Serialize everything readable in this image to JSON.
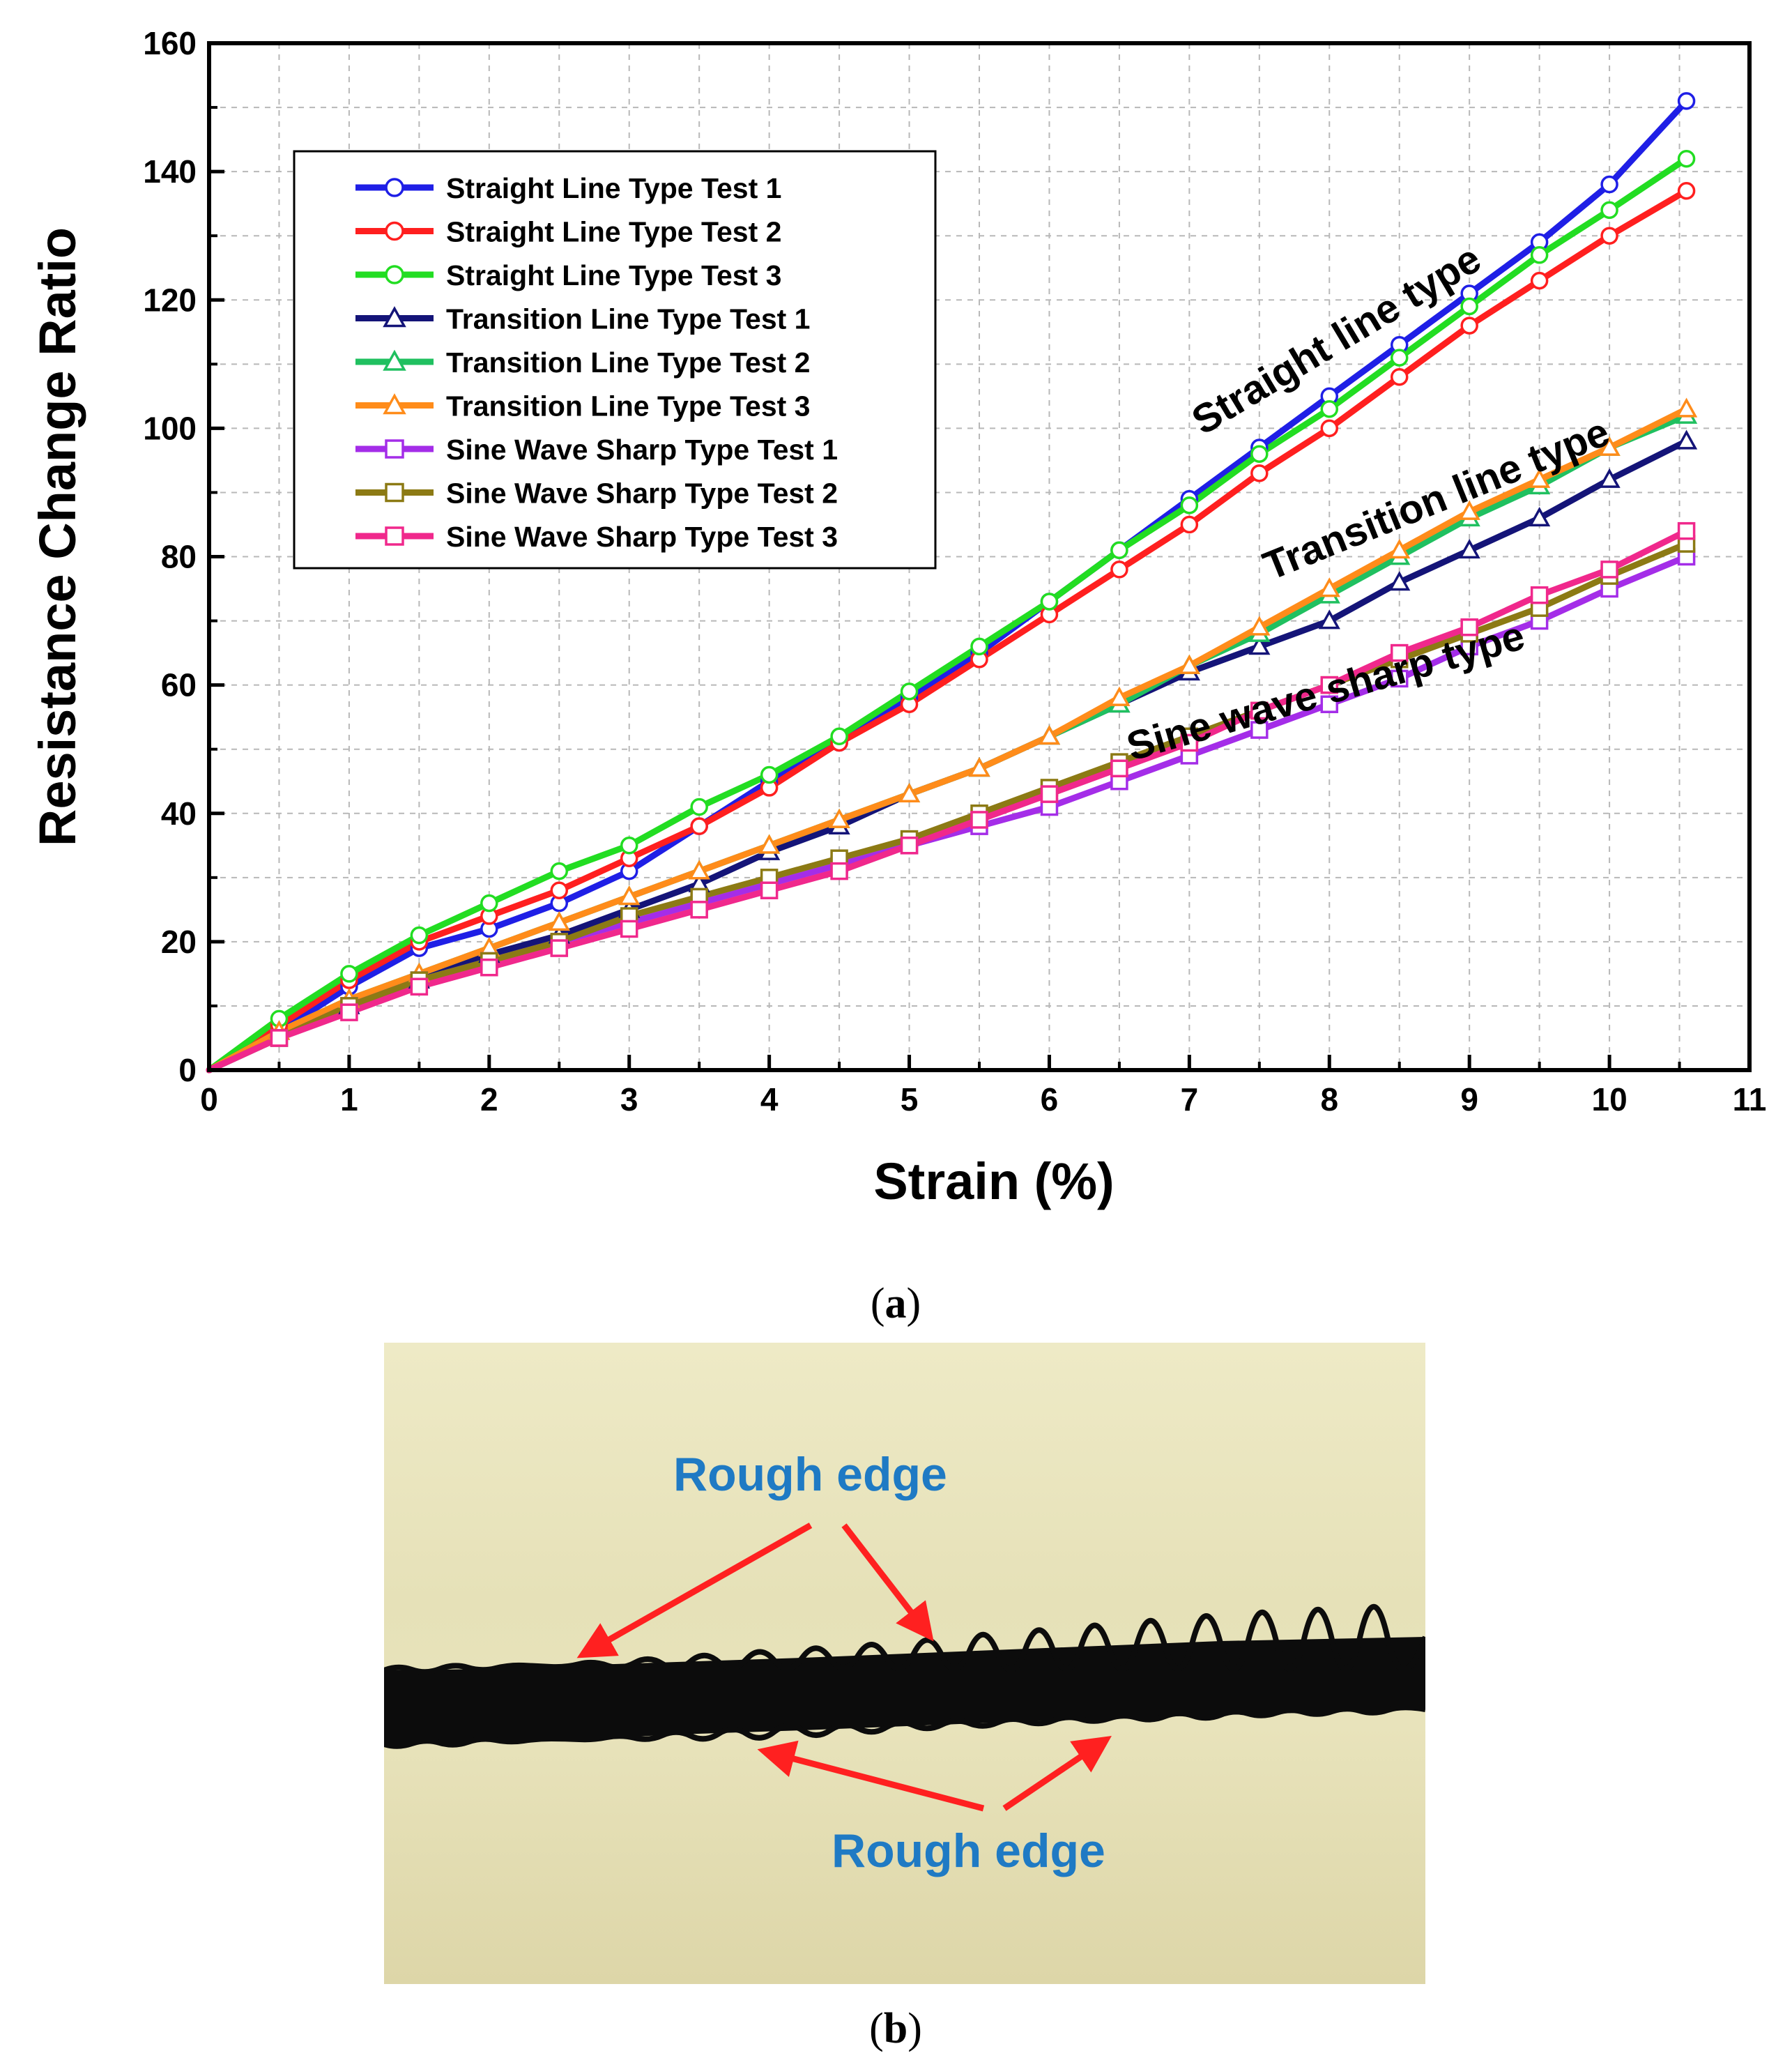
{
  "chart_data": {
    "type": "line",
    "xlabel": "Strain (%)",
    "ylabel": "Resistance Change Ratio",
    "xlim": [
      0,
      11
    ],
    "ylim": [
      0,
      160
    ],
    "xticks": [
      0,
      1,
      2,
      3,
      4,
      5,
      6,
      7,
      8,
      9,
      10,
      11
    ],
    "yticks": [
      0,
      20,
      40,
      60,
      80,
      100,
      120,
      140,
      160
    ],
    "grid": true,
    "legend_position": "top-left",
    "series": [
      {
        "name": "Straight Line Type Test 1",
        "color": "#1f1fe6",
        "marker": "circle",
        "x": [
          0,
          0.5,
          1,
          1.5,
          2,
          2.5,
          3,
          3.5,
          4,
          4.5,
          5,
          5.5,
          6,
          6.5,
          7,
          7.5,
          8,
          8.5,
          9,
          9.5,
          10,
          10.55
        ],
        "y": [
          0,
          6,
          13,
          19,
          22,
          26,
          31,
          38,
          45,
          51,
          58,
          65,
          73,
          81,
          89,
          97,
          105,
          113,
          121,
          129,
          138,
          151
        ]
      },
      {
        "name": "Straight Line Type Test 2",
        "color": "#ff1f1f",
        "marker": "circle",
        "x": [
          0,
          0.5,
          1,
          1.5,
          2,
          2.5,
          3,
          3.5,
          4,
          4.5,
          5,
          5.5,
          6,
          6.5,
          7,
          7.5,
          8,
          8.5,
          9,
          9.5,
          10,
          10.55
        ],
        "y": [
          0,
          7,
          14,
          20,
          24,
          28,
          33,
          38,
          44,
          51,
          57,
          64,
          71,
          78,
          85,
          93,
          100,
          108,
          116,
          123,
          130,
          137
        ]
      },
      {
        "name": "Straight Line Type Test 3",
        "color": "#22dd22",
        "marker": "circle",
        "x": [
          0,
          0.5,
          1,
          1.5,
          2,
          2.5,
          3,
          3.5,
          4,
          4.5,
          5,
          5.5,
          6,
          6.5,
          7,
          7.5,
          8,
          8.5,
          9,
          9.5,
          10,
          10.55
        ],
        "y": [
          0,
          8,
          15,
          21,
          26,
          31,
          35,
          41,
          46,
          52,
          59,
          66,
          73,
          81,
          88,
          96,
          103,
          111,
          119,
          127,
          134,
          142
        ]
      },
      {
        "name": "Transition Line Type Test 1",
        "color": "#141478",
        "marker": "triangle",
        "x": [
          0,
          0.5,
          1,
          1.5,
          2,
          2.5,
          3,
          3.5,
          4,
          4.5,
          5,
          5.5,
          6,
          6.5,
          7,
          7.5,
          8,
          8.5,
          9,
          9.5,
          10,
          10.55
        ],
        "y": [
          0,
          6,
          10,
          14,
          18,
          21,
          25,
          29,
          34,
          38,
          43,
          47,
          52,
          57,
          62,
          66,
          70,
          76,
          81,
          86,
          92,
          98
        ]
      },
      {
        "name": "Transition Line Type  Test 2",
        "color": "#20c060",
        "marker": "triangle",
        "x": [
          0,
          0.5,
          1,
          1.5,
          2,
          2.5,
          3,
          3.5,
          4,
          4.5,
          5,
          5.5,
          6,
          6.5,
          7,
          7.5,
          8,
          8.5,
          9,
          9.5,
          10,
          10.55
        ],
        "y": [
          0,
          6,
          11,
          15,
          19,
          23,
          27,
          31,
          35,
          39,
          43,
          47,
          52,
          57,
          63,
          68,
          74,
          80,
          86,
          91,
          97,
          102
        ]
      },
      {
        "name": "Transition Line Type  Test 3",
        "color": "#ff8c1a",
        "marker": "triangle",
        "x": [
          0,
          0.5,
          1,
          1.5,
          2,
          2.5,
          3,
          3.5,
          4,
          4.5,
          5,
          5.5,
          6,
          6.5,
          7,
          7.5,
          8,
          8.5,
          9,
          9.5,
          10,
          10.55
        ],
        "y": [
          0,
          6,
          11,
          15,
          19,
          23,
          27,
          31,
          35,
          39,
          43,
          47,
          52,
          58,
          63,
          69,
          75,
          81,
          87,
          92,
          97,
          103
        ]
      },
      {
        "name": "Sine Wave Sharp Type Test 1",
        "color": "#a42de8",
        "marker": "square",
        "x": [
          0,
          0.5,
          1,
          1.5,
          2,
          2.5,
          3,
          3.5,
          4,
          4.5,
          5,
          5.5,
          6,
          6.5,
          7,
          7.5,
          8,
          8.5,
          9,
          9.5,
          10,
          10.55
        ],
        "y": [
          0,
          5,
          10,
          14,
          17,
          20,
          23,
          26,
          29,
          32,
          35,
          38,
          41,
          45,
          49,
          53,
          57,
          61,
          66,
          70,
          75,
          80
        ]
      },
      {
        "name": "Sine Wave Sharp Type Test 2",
        "color": "#8c7a14",
        "marker": "square",
        "x": [
          0,
          0.5,
          1,
          1.5,
          2,
          2.5,
          3,
          3.5,
          4,
          4.5,
          5,
          5.5,
          6,
          6.5,
          7,
          7.5,
          8,
          8.5,
          9,
          9.5,
          10,
          10.55
        ],
        "y": [
          0,
          5,
          10,
          14,
          17,
          20,
          24,
          27,
          30,
          33,
          36,
          40,
          44,
          48,
          52,
          56,
          60,
          64,
          68,
          72,
          77,
          82
        ]
      },
      {
        "name": "Sine Wave Sharp Type Test 3",
        "color": "#f0288c",
        "marker": "square",
        "x": [
          0,
          0.5,
          1,
          1.5,
          2,
          2.5,
          3,
          3.5,
          4,
          4.5,
          5,
          5.5,
          6,
          6.5,
          7,
          7.5,
          8,
          8.5,
          9,
          9.5,
          10,
          10.55
        ],
        "y": [
          0,
          5,
          9,
          13,
          16,
          19,
          22,
          25,
          28,
          31,
          35,
          39,
          43,
          47,
          51,
          56,
          60,
          65,
          69,
          74,
          78,
          84
        ]
      }
    ],
    "annotations": [
      {
        "text": "Straight line type",
        "x": 8.1,
        "y": 112
      },
      {
        "text": "Transition line type",
        "x": 8.8,
        "y": 87
      },
      {
        "text": "Sine wave sharp type",
        "x": 8.0,
        "y": 57
      }
    ]
  },
  "captions": {
    "a": "a",
    "b": "b"
  },
  "photo": {
    "labels": [
      {
        "text": "Rough edge"
      },
      {
        "text": "Rough edge"
      }
    ],
    "arrow_color": "#ff2020"
  }
}
